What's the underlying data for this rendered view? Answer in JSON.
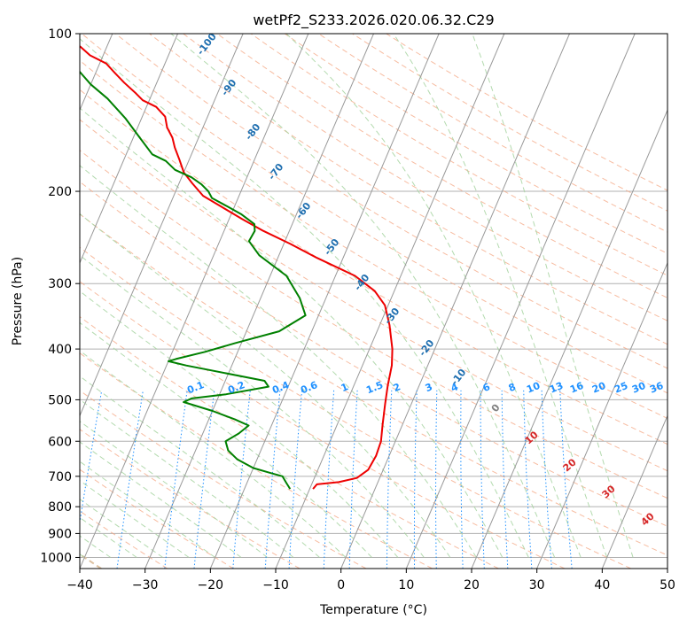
{
  "chart_data": {
    "type": "line",
    "diagram": "Skew-T log-P",
    "title": "wetPf2_S233.2026.020.06.32.C29",
    "xlabel": "Temperature (°C)",
    "ylabel": "Pressure (hPa)",
    "xlim": [
      -40,
      50
    ],
    "ylim": [
      1050,
      100
    ],
    "y_scale": "log",
    "skew": 35,
    "x_ticks": [
      -40,
      -30,
      -20,
      -10,
      0,
      10,
      20,
      30,
      40,
      50
    ],
    "x_tick_labels": [
      "−40",
      "−30",
      "−20",
      "−10",
      "0",
      "10",
      "20",
      "30",
      "40",
      "50"
    ],
    "y_ticks": [
      100,
      200,
      300,
      400,
      500,
      600,
      700,
      800,
      900,
      1000
    ],
    "y_tick_labels": [
      "100",
      "200",
      "300",
      "400",
      "500",
      "600",
      "700",
      "800",
      "900",
      "1000"
    ],
    "grid": true,
    "colors": {
      "temperature": "#ee0000",
      "dewpoint": "#008000",
      "isotherm": "#999999",
      "dry_adiabat": "#f4a582",
      "moist_adiabat": "#a6d3a0",
      "mixing_ratio": "#1e90ff",
      "mixing_label": "#1e90ff",
      "moist_label": "#1f6fb0",
      "dry_label": "#d62728",
      "zero_label": "#808080",
      "special_dry": "#dcc0a0"
    },
    "series": [
      {
        "name": "Temperature",
        "color": "#ee0000",
        "points": [
          [
            -9.5,
            740
          ],
          [
            -9.2,
            725
          ],
          [
            -6,
            718
          ],
          [
            -3.5,
            705
          ],
          [
            -2.3,
            680
          ],
          [
            -2,
            640
          ],
          [
            -2.2,
            600
          ],
          [
            -3,
            560
          ],
          [
            -4,
            510
          ],
          [
            -4.8,
            470
          ],
          [
            -5.5,
            430
          ],
          [
            -6.5,
            400
          ],
          [
            -8.5,
            360
          ],
          [
            -10.5,
            330
          ],
          [
            -13,
            310
          ],
          [
            -17,
            290
          ],
          [
            -24,
            268
          ],
          [
            -29,
            252
          ],
          [
            -34,
            238
          ],
          [
            -38,
            226
          ],
          [
            -42,
            214
          ],
          [
            -45.5,
            204
          ],
          [
            -48,
            193
          ],
          [
            -50,
            184
          ],
          [
            -51.5,
            174
          ],
          [
            -53,
            165
          ],
          [
            -54,
            158
          ],
          [
            -55.5,
            151
          ],
          [
            -56.5,
            144
          ],
          [
            -58.5,
            138
          ],
          [
            -61,
            134
          ],
          [
            -62.5,
            130
          ],
          [
            -65,
            124
          ],
          [
            -67,
            119
          ],
          [
            -69,
            114
          ],
          [
            -72,
            110
          ],
          [
            -74,
            106
          ],
          [
            -76,
            103
          ],
          [
            -78,
            100
          ]
        ]
      },
      {
        "name": "Dewpoint",
        "color": "#008000",
        "points": [
          [
            -13,
            740
          ],
          [
            -14,
            720
          ],
          [
            -15,
            700
          ],
          [
            -17,
            690
          ],
          [
            -20,
            675
          ],
          [
            -23,
            650
          ],
          [
            -25,
            625
          ],
          [
            -26,
            600
          ],
          [
            -24.5,
            580
          ],
          [
            -23.5,
            560
          ],
          [
            -26,
            545
          ],
          [
            -30,
            525
          ],
          [
            -35,
            505
          ],
          [
            -34,
            497
          ],
          [
            -29,
            488
          ],
          [
            -23,
            472
          ],
          [
            -24,
            460
          ],
          [
            -37,
            430
          ],
          [
            -40,
            422
          ],
          [
            -39,
            418
          ],
          [
            -35,
            405
          ],
          [
            -31,
            390
          ],
          [
            -25,
            370
          ],
          [
            -22,
            345
          ],
          [
            -24,
            320
          ],
          [
            -27.5,
            290
          ],
          [
            -33,
            265
          ],
          [
            -35.5,
            249
          ],
          [
            -35.3,
            238
          ],
          [
            -35.8,
            231
          ],
          [
            -38.5,
            221
          ],
          [
            -41,
            214
          ],
          [
            -44,
            206
          ],
          [
            -45,
            200
          ],
          [
            -46.5,
            194
          ],
          [
            -48.5,
            188
          ],
          [
            -51.5,
            182
          ],
          [
            -53.5,
            175
          ],
          [
            -56,
            170
          ],
          [
            -59,
            158
          ],
          [
            -62.5,
            145
          ],
          [
            -66.5,
            133
          ],
          [
            -70,
            125
          ],
          [
            -73,
            117
          ],
          [
            -75,
            111
          ],
          [
            -77,
            106
          ],
          [
            -78,
            103
          ]
        ]
      }
    ],
    "isotherms": [
      -100,
      -90,
      -80,
      -70,
      -60,
      -50,
      -40,
      -30,
      -20,
      -10,
      0,
      10,
      20,
      30,
      40,
      50
    ],
    "dry_adiabat_thetas_C": [
      -30,
      -20,
      -10,
      0,
      10,
      20,
      30,
      40,
      50,
      60,
      70,
      80,
      90,
      100,
      110,
      120,
      130,
      140,
      150,
      160,
      170,
      180,
      190,
      200
    ],
    "moist_adiabat_labels": [
      "-100",
      "-90",
      "-80",
      "-70",
      "-60",
      "-50",
      "-40",
      "-30",
      "-20",
      "-10",
      "0"
    ],
    "mixing_ratio_labels": [
      "0.1",
      "0.2",
      "0.4",
      "0.6",
      "1",
      "1.5",
      "2",
      "3",
      "4",
      "6",
      "8",
      "10",
      "13",
      "16",
      "20",
      "25",
      "30",
      "36"
    ],
    "dry_adiabat_labels": [
      "10",
      "20",
      "30",
      "40"
    ]
  }
}
